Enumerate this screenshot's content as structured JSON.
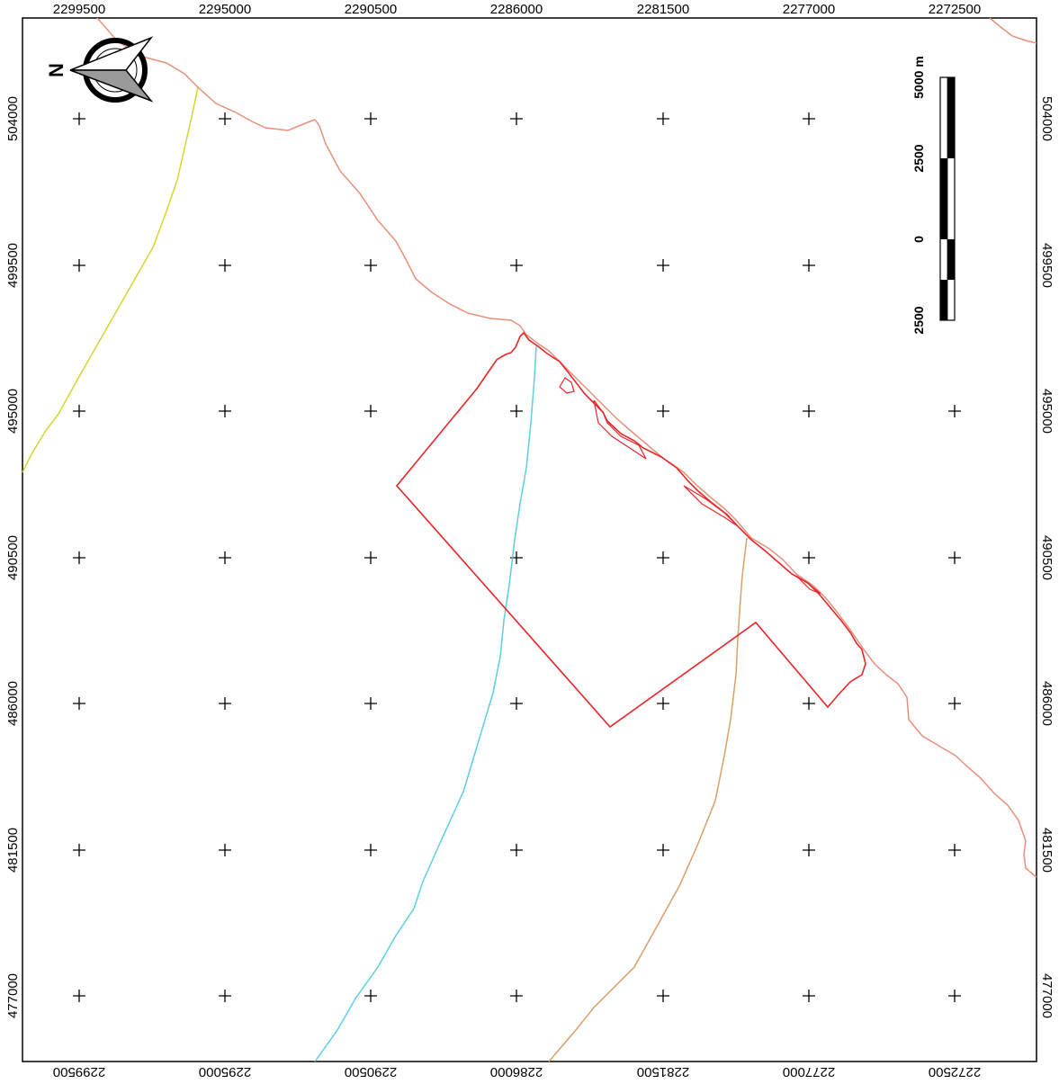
{
  "map": {
    "x_coords": [
      "2299500",
      "2295000",
      "2290500",
      "2286000",
      "2281500",
      "2277000",
      "2272500"
    ],
    "y_coords": [
      "504000",
      "499500",
      "495000",
      "490500",
      "486000",
      "481500",
      "477000"
    ],
    "north_label": "N",
    "scale_bar": {
      "labels": [
        "5000 m",
        "2500",
        "0",
        "2500"
      ]
    },
    "colors": {
      "frame": "#000000",
      "coastline": "#e8907a",
      "boundary": "#e8252a",
      "river_cyan": "#5bcfe0",
      "river_orange": "#d9a067",
      "road_yellow": "#d6d62c",
      "grid_cross": "#000000"
    }
  }
}
